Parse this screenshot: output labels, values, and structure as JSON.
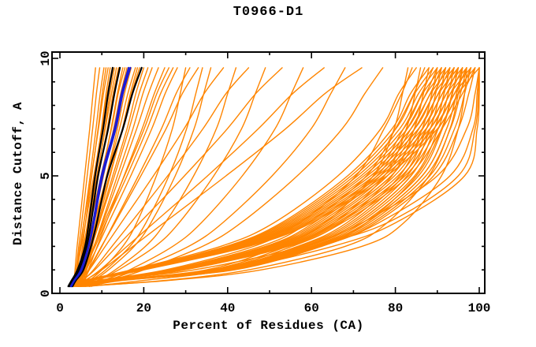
{
  "chart_data": {
    "type": "line",
    "title": "T0966-D1",
    "xlabel": "Percent of Residues (CA)",
    "ylabel": "Distance Cutoff, A",
    "xlim": [
      0,
      100
    ],
    "ylim": [
      0,
      10
    ],
    "x_major_ticks": [
      0,
      20,
      40,
      60,
      80,
      100
    ],
    "x_minor_ticks": [
      10,
      30,
      50,
      70,
      90
    ],
    "y_major_ticks": [
      0,
      5,
      10
    ],
    "y_minor_ticks": [
      1,
      2,
      3,
      4,
      6,
      7,
      8,
      9
    ],
    "grid": false,
    "legend": false,
    "colors": {
      "models": "#ff8500",
      "highlight_models": "#000000",
      "reference_models": "#1b1bd6",
      "axis": "#000000",
      "text": "#000000",
      "background": "#ffffff"
    },
    "y_samples": [
      0.3,
      0.55,
      1,
      2,
      3,
      5,
      7,
      8.5,
      9.6
    ],
    "series": [
      {
        "name": "orange-models",
        "color_key": "models",
        "stroke_width": 1.4,
        "curves_x": [
          [
            3.2,
            3.4,
            3.6,
            4.1,
            4.7,
            5.9,
            7.1,
            7.9,
            8.5
          ],
          [
            3.5,
            3.7,
            3.9,
            4.5,
            5.2,
            6.5,
            7.8,
            8.7,
            9.5
          ],
          [
            3.8,
            4.0,
            4.2,
            4.9,
            5.7,
            7.2,
            8.6,
            9.6,
            10.5
          ],
          [
            4.2,
            4.4,
            4.6,
            5.4,
            6.1,
            7.6,
            9.1,
            10.1,
            11.0
          ],
          [
            3.4,
            3.6,
            3.9,
            4.8,
            5.7,
            7.5,
            9.2,
            10.4,
            11.5
          ],
          [
            4.5,
            4.7,
            5.0,
            5.8,
            6.6,
            8.3,
            9.9,
            11.0,
            12.0
          ],
          [
            3.6,
            3.8,
            4.1,
            5.1,
            6.1,
            8.1,
            10.0,
            11.3,
            12.5
          ],
          [
            4.8,
            5.0,
            5.3,
            6.2,
            7.1,
            8.9,
            10.7,
            11.9,
            13.0
          ],
          [
            4.0,
            4.2,
            4.6,
            5.6,
            6.7,
            8.8,
            10.8,
            12.3,
            13.5
          ],
          [
            4.4,
            4.6,
            5.0,
            6.0,
            7.1,
            9.2,
            11.3,
            12.7,
            14.0
          ],
          [
            5.0,
            5.2,
            5.6,
            6.7,
            7.8,
            10.0,
            12.2,
            13.7,
            15.0
          ],
          [
            4.1,
            4.3,
            4.8,
            6.0,
            7.3,
            9.8,
            12.3,
            13.9,
            15.5
          ],
          [
            4.7,
            4.9,
            5.4,
            6.6,
            7.9,
            10.4,
            12.8,
            14.5,
            16.0
          ],
          [
            5.2,
            5.4,
            5.9,
            7.2,
            8.5,
            11.1,
            13.7,
            15.4,
            17.0
          ],
          [
            4.3,
            4.6,
            5.1,
            6.6,
            8.1,
            11.2,
            14.2,
            16.2,
            18.0
          ],
          [
            5.5,
            5.8,
            6.3,
            7.7,
            9.1,
            12.0,
            14.9,
            16.8,
            18.5
          ],
          [
            4.6,
            4.9,
            5.5,
            7.0,
            8.6,
            11.8,
            15.0,
            17.1,
            19.0
          ],
          [
            5.1,
            5.4,
            6.0,
            7.6,
            9.3,
            12.6,
            16.0,
            18.1,
            20.0
          ],
          [
            4.9,
            5.2,
            5.9,
            7.6,
            9.4,
            13.0,
            16.5,
            18.9,
            21.0
          ],
          [
            5.4,
            5.7,
            6.4,
            8.2,
            10.0,
            13.7,
            17.4,
            19.8,
            22.0
          ],
          [
            5.0,
            5.4,
            6.1,
            8.1,
            10.2,
            14.3,
            18.3,
            21.1,
            23.5
          ],
          [
            5.6,
            6.0,
            6.8,
            8.9,
            11.0,
            15.3,
            19.6,
            22.5,
            25.0
          ],
          [
            4.0,
            4.4,
            5.8,
            8.4,
            10.9,
            16.0,
            20.8,
            24.0,
            27.0
          ],
          [
            4.1,
            4.5,
            5.6,
            8.1,
            10.5,
            15.4,
            20.1,
            23.1,
            26.0
          ],
          [
            5.0,
            7.0,
            10.0,
            15.0,
            18.3,
            23.0,
            26.8,
            28.7,
            30.0
          ],
          [
            4.9,
            5.3,
            6.3,
            9.0,
            11.6,
            16.9,
            21.9,
            25.1,
            28.0
          ],
          [
            4.5,
            5.0,
            6.8,
            9.9,
            13.1,
            19.3,
            25.3,
            29.2,
            33.0
          ],
          [
            5.3,
            5.8,
            7.0,
            10.0,
            12.9,
            18.7,
            24.2,
            27.7,
            31.0
          ],
          [
            5.5,
            8.0,
            11.6,
            17.7,
            21.7,
            27.5,
            32.0,
            34.3,
            36.0
          ],
          [
            4.7,
            7.4,
            10.9,
            16.7,
            20.5,
            26.0,
            30.2,
            32.4,
            34.0
          ],
          [
            4.2,
            4.9,
            7.0,
            10.8,
            14.6,
            22.3,
            29.6,
            34.4,
            39.0
          ],
          [
            6.0,
            9.0,
            13.2,
            20.4,
            25.1,
            31.9,
            37.3,
            40.0,
            42.0
          ],
          [
            4.8,
            5.6,
            8.0,
            12.4,
            16.9,
            25.7,
            34.1,
            39.6,
            45.0
          ],
          [
            5.2,
            9.2,
            14.0,
            22.7,
            28.4,
            36.7,
            43.3,
            46.6,
            49.0
          ],
          [
            4.4,
            5.4,
            8.3,
            13.6,
            19.0,
            29.7,
            39.9,
            46.7,
            53.0
          ],
          [
            6.2,
            10.3,
            16.6,
            26.9,
            33.7,
            43.5,
            51.3,
            55.2,
            58.0
          ],
          [
            5.0,
            6.2,
            9.6,
            16.0,
            22.4,
            35.2,
            47.3,
            55.5,
            63.0
          ],
          [
            5.8,
            11.2,
            18.2,
            30.7,
            38.8,
            50.6,
            59.9,
            64.6,
            68.0
          ],
          [
            4.6,
            6.0,
            10.0,
            17.4,
            24.8,
            39.6,
            53.8,
            63.2,
            72.0
          ],
          [
            6.5,
            12.1,
            20.0,
            34.0,
            43.2,
            56.6,
            67.3,
            72.7,
            77.0
          ],
          [
            3.5,
            11.6,
            34.9,
            52.3,
            63.1,
            74.7,
            79.7,
            81.7,
            83.0
          ],
          [
            4.0,
            9.2,
            25.2,
            46.2,
            57.1,
            70.6,
            77.3,
            81.5,
            84.0
          ],
          [
            5.0,
            6.0,
            17.0,
            38.3,
            51.0,
            66.3,
            76.5,
            80.8,
            85.0
          ],
          [
            6.0,
            12.0,
            36.1,
            54.2,
            65.4,
            77.4,
            82.6,
            84.7,
            86.0
          ],
          [
            4.5,
            9.6,
            26.1,
            47.9,
            59.2,
            73.1,
            80.0,
            84.4,
            87.0
          ],
          [
            3.0,
            6.2,
            17.6,
            39.6,
            52.8,
            68.6,
            79.2,
            83.6,
            88.0
          ],
          [
            7.0,
            12.3,
            37.0,
            55.4,
            66.9,
            79.2,
            84.5,
            86.7,
            88.0
          ],
          [
            5.5,
            9.8,
            26.7,
            49.0,
            60.5,
            74.8,
            81.9,
            86.3,
            89.0
          ],
          [
            4.0,
            6.2,
            17.8,
            40.1,
            53.4,
            69.4,
            80.1,
            84.6,
            89.0
          ],
          [
            3.5,
            12.6,
            37.8,
            56.7,
            68.4,
            81.0,
            86.4,
            88.7,
            90.0
          ],
          [
            6.0,
            9.9,
            27.0,
            49.5,
            61.2,
            75.6,
            82.8,
            87.3,
            90.0
          ],
          [
            5.0,
            6.3,
            18.0,
            40.5,
            54.0,
            70.2,
            81.0,
            85.5,
            90.0
          ],
          [
            4.5,
            12.7,
            38.2,
            57.3,
            69.2,
            81.9,
            87.4,
            89.6,
            91.0
          ],
          [
            3.8,
            10.0,
            27.3,
            50.1,
            61.9,
            76.4,
            83.7,
            88.3,
            91.0
          ],
          [
            6.5,
            7.5,
            18.2,
            41.0,
            54.6,
            71.0,
            81.9,
            86.5,
            91.0
          ],
          [
            5.5,
            12.9,
            38.6,
            58.0,
            69.9,
            82.8,
            88.3,
            90.6,
            92.0
          ],
          [
            4.2,
            10.1,
            27.6,
            50.6,
            62.6,
            77.3,
            84.6,
            89.2,
            92.0
          ],
          [
            7.0,
            8.0,
            18.4,
            41.4,
            55.2,
            71.8,
            82.8,
            87.4,
            92.0
          ],
          [
            3.2,
            13.0,
            39.1,
            58.6,
            70.7,
            83.7,
            89.3,
            91.6,
            93.0
          ],
          [
            5.8,
            10.2,
            27.9,
            51.2,
            63.2,
            78.1,
            85.6,
            90.2,
            93.0
          ],
          [
            4.8,
            6.5,
            18.6,
            41.9,
            55.8,
            72.5,
            83.7,
            88.4,
            93.0
          ],
          [
            6.8,
            13.0,
            39.1,
            58.6,
            70.7,
            83.7,
            89.3,
            91.6,
            93.0
          ],
          [
            4.0,
            10.3,
            28.2,
            51.7,
            63.9,
            79.0,
            86.5,
            91.2,
            94.0
          ],
          [
            6.0,
            7.0,
            18.8,
            42.3,
            56.4,
            73.3,
            84.6,
            89.3,
            94.0
          ],
          [
            5.0,
            13.2,
            39.5,
            59.2,
            71.4,
            84.6,
            90.2,
            92.6,
            94.0
          ],
          [
            7.2,
            10.3,
            28.2,
            51.7,
            63.9,
            79.0,
            86.5,
            91.2,
            94.0
          ],
          [
            3.6,
            6.7,
            19.0,
            42.8,
            57.0,
            74.1,
            85.5,
            90.3,
            95.0
          ],
          [
            4.4,
            13.3,
            39.9,
            59.9,
            72.2,
            85.5,
            91.2,
            93.6,
            95.0
          ],
          [
            6.3,
            10.5,
            28.5,
            52.3,
            64.6,
            79.8,
            87.4,
            92.2,
            95.0
          ],
          [
            5.2,
            6.7,
            19.0,
            42.8,
            57.0,
            74.1,
            85.5,
            90.3,
            95.0
          ],
          [
            3.9,
            13.4,
            40.3,
            60.5,
            73.0,
            86.4,
            92.2,
            94.6,
            96.0
          ],
          [
            5.6,
            10.6,
            28.8,
            52.8,
            65.3,
            80.6,
            88.3,
            93.1,
            96.0
          ],
          [
            7.4,
            7.8,
            19.2,
            43.2,
            57.6,
            74.9,
            86.4,
            91.2,
            96.0
          ],
          [
            4.7,
            13.4,
            40.3,
            60.5,
            73.0,
            86.4,
            92.2,
            94.6,
            96.0
          ],
          [
            3.4,
            10.7,
            29.1,
            53.4,
            66.0,
            81.5,
            89.2,
            94.1,
            97.0
          ],
          [
            6.1,
            7.0,
            19.4,
            43.7,
            58.2,
            75.7,
            87.3,
            92.2,
            97.0
          ],
          [
            5.3,
            13.6,
            40.7,
            61.1,
            73.7,
            87.3,
            93.1,
            95.5,
            97.0
          ],
          [
            7.6,
            10.7,
            29.1,
            53.4,
            66.0,
            81.5,
            89.2,
            94.1,
            97.0
          ],
          [
            4.1,
            6.9,
            19.6,
            44.1,
            58.8,
            76.4,
            88.2,
            93.1,
            98.0
          ],
          [
            5.9,
            13.7,
            41.2,
            61.7,
            74.5,
            88.2,
            94.1,
            96.5,
            98.0
          ],
          [
            3.3,
            10.8,
            29.4,
            53.9,
            66.6,
            82.3,
            90.2,
            95.1,
            98.0
          ],
          [
            6.6,
            7.5,
            19.8,
            44.6,
            59.4,
            77.2,
            89.1,
            94.1,
            99.0
          ],
          [
            4.3,
            13.9,
            41.6,
            62.4,
            75.2,
            89.1,
            95.0,
            97.5,
            99.0
          ],
          [
            5.7,
            10.9,
            29.7,
            54.5,
            67.3,
            83.2,
            91.1,
            96.0,
            99.0
          ],
          [
            3.7,
            7.0,
            20.0,
            45.0,
            60.0,
            78.0,
            90.0,
            95.0,
            100.0
          ],
          [
            5.0,
            10.0,
            32.0,
            58.0,
            72.0,
            90.0,
            97.0,
            99.0,
            100.0
          ],
          [
            6.0,
            14.0,
            38.0,
            62.0,
            76.0,
            93.0,
            98.5,
            99.5,
            100.0
          ],
          [
            4.5,
            12.0,
            36.0,
            60.0,
            78.0,
            95.0,
            99.0,
            99.8,
            100.0
          ],
          [
            7.0,
            15.0,
            40.0,
            65.0,
            80.0,
            96.5,
            99.5,
            100.0,
            100.0
          ],
          [
            6.0,
            25.0,
            45.0,
            68.0,
            78.0,
            88.0,
            93.0,
            95.0,
            96.0
          ],
          [
            5.0,
            26.0,
            48.0,
            72.0,
            82.0,
            91.0,
            95.0,
            96.5,
            97.0
          ],
          [
            7.0,
            20.0,
            40.0,
            62.0,
            73.0,
            85.0,
            91.0,
            93.5,
            95.0
          ]
        ]
      },
      {
        "name": "black-highlight-models",
        "color_key": "highlight_models",
        "stroke_width": 2.2,
        "curves_x": [
          [
            2.0,
            2.8,
            4.2,
            6.0,
            6.9,
            8.4,
            10.3,
            11.5,
            12.6
          ],
          [
            2.3,
            3.1,
            4.6,
            6.4,
            7.4,
            9.1,
            11.5,
            13.0,
            14.3
          ],
          [
            3.0,
            3.8,
            5.6,
            7.4,
            8.8,
            11.3,
            15.0,
            17.3,
            19.5
          ]
        ]
      },
      {
        "name": "blue-reference-models",
        "color_key": "reference_models",
        "stroke_width": 2.2,
        "curves_x": [
          [
            2.6,
            3.4,
            5.0,
            6.8,
            7.9,
            9.9,
            13.0,
            14.7,
            16.4
          ],
          [
            2.7,
            3.5,
            5.2,
            6.9,
            8.1,
            10.2,
            13.3,
            15.0,
            16.8
          ]
        ]
      }
    ]
  }
}
